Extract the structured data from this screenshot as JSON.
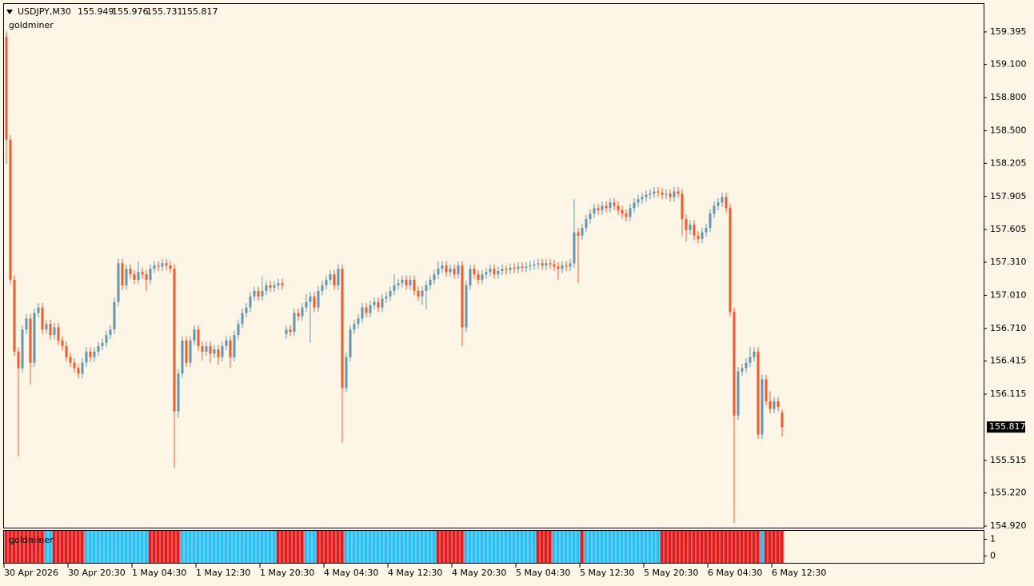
{
  "chart_data": [
    {
      "type": "candlestick",
      "title": "USDJPY,M30",
      "indicator": "goldminer",
      "up_color": "#5f97b3",
      "down_color": "#f25a28",
      "xlim": [
        -0.6,
        244.4
      ],
      "ylim": [
        154.906,
        159.648
      ],
      "yticks": [
        159.395,
        {
          "value": 159.1,
          "label": "159.100"
        },
        {
          "value": 158.8,
          "label": "158.800"
        },
        {
          "value": 158.5,
          "label": "158.500"
        },
        158.205,
        157.905,
        157.605,
        {
          "value": 157.31,
          "label": "157.310"
        },
        {
          "value": 157.01,
          "label": "157.010"
        },
        {
          "value": 156.71,
          "label": "156.710"
        },
        156.415,
        156.115,
        155.515,
        {
          "value": 155.22,
          "label": "155.220"
        },
        {
          "value": 154.92,
          "label": "154.920"
        }
      ],
      "current_price": 155.817,
      "xticks": [
        {
          "value": 0,
          "label": "30 Apr 2026"
        },
        {
          "value": 16,
          "label": "30 Apr 20:30"
        },
        {
          "value": 32,
          "label": "1 May 04:30"
        },
        {
          "value": 48,
          "label": "1 May 12:30"
        },
        {
          "value": 64,
          "label": "1 May 20:30"
        },
        {
          "value": 80,
          "label": "4 May 04:30"
        },
        {
          "value": 96,
          "label": "4 May 12:30"
        },
        {
          "value": 112,
          "label": "4 May 20:30"
        },
        {
          "value": 128,
          "label": "5 May 04:30"
        },
        {
          "value": 144,
          "label": "5 May 12:30"
        },
        {
          "value": 160,
          "label": "5 May 20:30"
        },
        {
          "value": 176,
          "label": "6 May 04:30"
        },
        {
          "value": 192,
          "label": "6 May 12:30"
        }
      ],
      "open": [
        159.35,
        158.42,
        157.15,
        156.5,
        156.35,
        156.7,
        156.8,
        156.4,
        156.85,
        156.9,
        156.7,
        156.75,
        156.65,
        156.72,
        156.6,
        156.55,
        156.45,
        156.4,
        156.35,
        156.3,
        156.4,
        156.5,
        156.45,
        156.5,
        156.55,
        156.58,
        156.65,
        156.7,
        156.95,
        157.3,
        157.1,
        157.25,
        157.2,
        157.15,
        157.22,
        157.2,
        157.15,
        157.25,
        157.28,
        157.27,
        157.3,
        157.28,
        157.25,
        155.96,
        156.3,
        156.6,
        156.4,
        156.6,
        156.7,
        156.55,
        156.5,
        156.55,
        156.48,
        156.52,
        156.45,
        156.55,
        156.6,
        156.45,
        156.65,
        156.75,
        156.85,
        156.9,
        157.0,
        157.05,
        157.0,
        157.05,
        157.1,
        157.08,
        157.1,
        157.12,
        156.66,
        156.7,
        156.68,
        156.85,
        156.82,
        156.9,
        156.95,
        157.0,
        156.9,
        157.05,
        157.1,
        157.15,
        157.2,
        157.1,
        157.25,
        156.17,
        156.45,
        156.7,
        156.75,
        156.8,
        156.9,
        156.85,
        156.92,
        156.95,
        156.9,
        156.98,
        157.0,
        157.05,
        157.1,
        157.12,
        157.15,
        157.1,
        157.15,
        157.05,
        157.0,
        157.05,
        157.1,
        157.15,
        157.2,
        157.25,
        157.28,
        157.22,
        157.25,
        157.2,
        157.28,
        156.72,
        157.1,
        157.25,
        157.2,
        157.15,
        157.2,
        157.22,
        157.25,
        157.2,
        157.23,
        157.25,
        157.24,
        157.26,
        157.25,
        157.27,
        157.26,
        157.27,
        157.28,
        157.29,
        157.3,
        157.28,
        157.3,
        157.29,
        157.27,
        157.25,
        157.28,
        157.27,
        157.3,
        157.58,
        157.55,
        157.62,
        157.7,
        157.75,
        157.8,
        157.78,
        157.82,
        157.8,
        157.85,
        157.82,
        157.78,
        157.75,
        157.72,
        157.8,
        157.85,
        157.88,
        157.9,
        157.92,
        157.93,
        157.95,
        157.94,
        157.92,
        157.93,
        157.9,
        157.95,
        157.93,
        157.7,
        157.6,
        157.65,
        157.55,
        157.52,
        157.58,
        157.62,
        157.75,
        157.82,
        157.85,
        157.9,
        157.8,
        156.86,
        155.92,
        156.32,
        156.35,
        156.4,
        156.45,
        156.5,
        155.75,
        156.25,
        156.05,
        155.98,
        156.05,
        155.949
      ],
      "high": [
        159.4,
        158.46,
        157.19,
        156.54,
        156.74,
        156.84,
        156.84,
        156.89,
        156.94,
        156.94,
        156.79,
        156.79,
        156.76,
        156.76,
        156.64,
        156.59,
        156.49,
        156.44,
        156.39,
        156.44,
        156.54,
        156.54,
        156.54,
        156.59,
        156.62,
        156.69,
        156.74,
        156.99,
        157.34,
        157.34,
        157.29,
        157.29,
        157.24,
        157.32,
        157.26,
        157.24,
        157.29,
        157.32,
        157.32,
        157.34,
        157.34,
        157.32,
        157.29,
        156.34,
        156.64,
        156.64,
        156.64,
        156.74,
        156.74,
        156.59,
        156.59,
        156.59,
        156.56,
        156.56,
        156.59,
        156.64,
        156.64,
        156.69,
        156.79,
        156.89,
        156.94,
        157.04,
        157.09,
        157.09,
        157.18,
        157.14,
        157.14,
        157.14,
        157.16,
        157.16,
        156.74,
        156.74,
        156.89,
        156.89,
        156.94,
        157.02,
        157.04,
        157.04,
        157.09,
        157.14,
        157.19,
        157.24,
        157.24,
        157.29,
        157.29,
        156.49,
        156.74,
        156.79,
        156.84,
        156.94,
        156.94,
        156.96,
        156.99,
        156.99,
        157.02,
        157.04,
        157.09,
        157.2,
        157.16,
        157.19,
        157.19,
        157.19,
        157.19,
        157.09,
        157.09,
        157.14,
        157.19,
        157.24,
        157.32,
        157.32,
        157.32,
        157.29,
        157.29,
        157.32,
        157.32,
        157.14,
        157.29,
        157.29,
        157.24,
        157.24,
        157.26,
        157.29,
        157.29,
        157.27,
        157.29,
        157.28,
        157.3,
        157.3,
        157.31,
        157.31,
        157.31,
        157.32,
        157.33,
        157.34,
        157.34,
        157.34,
        157.34,
        157.33,
        157.31,
        157.32,
        157.32,
        157.34,
        157.88,
        157.62,
        157.66,
        157.74,
        157.79,
        157.84,
        157.84,
        157.86,
        157.86,
        157.89,
        157.89,
        157.86,
        157.82,
        157.79,
        157.84,
        157.89,
        157.92,
        157.94,
        157.96,
        157.97,
        157.99,
        157.99,
        157.98,
        157.97,
        157.97,
        157.99,
        157.99,
        157.97,
        157.74,
        157.69,
        157.69,
        157.59,
        157.62,
        157.66,
        157.79,
        157.86,
        157.89,
        157.94,
        157.94,
        157.84,
        156.9,
        156.36,
        156.39,
        156.44,
        156.54,
        156.54,
        156.54,
        156.29,
        156.29,
        156.14,
        156.09,
        156.09,
        155.976
      ],
      "low": [
        158.2,
        157.11,
        156.46,
        155.55,
        156.31,
        156.66,
        156.2,
        156.36,
        156.81,
        156.66,
        156.66,
        156.61,
        156.61,
        156.56,
        156.51,
        156.41,
        156.36,
        156.31,
        156.26,
        156.26,
        156.36,
        156.41,
        156.41,
        156.46,
        156.51,
        156.54,
        156.61,
        156.66,
        156.91,
        157.06,
        157.06,
        157.16,
        157.11,
        157.11,
        157.16,
        157.05,
        157.11,
        157.21,
        157.23,
        157.23,
        157.24,
        157.21,
        155.45,
        155.9,
        156.26,
        156.36,
        156.36,
        156.56,
        156.51,
        156.42,
        156.46,
        156.4,
        156.44,
        156.38,
        156.41,
        156.51,
        156.35,
        156.41,
        156.61,
        156.71,
        156.81,
        156.86,
        156.96,
        156.96,
        156.96,
        157.01,
        157.04,
        157.04,
        157.06,
        157.06,
        156.62,
        156.64,
        156.64,
        156.78,
        156.78,
        156.86,
        156.58,
        156.86,
        156.86,
        157.01,
        157.06,
        157.11,
        157.06,
        157.06,
        155.68,
        156.13,
        156.41,
        156.66,
        156.71,
        156.76,
        156.81,
        156.81,
        156.88,
        156.86,
        156.86,
        156.94,
        156.96,
        157.01,
        157.06,
        157.08,
        157.06,
        157.06,
        157.01,
        156.96,
        156.92,
        156.88,
        157.06,
        157.11,
        157.16,
        157.21,
        157.18,
        157.18,
        157.16,
        157.16,
        156.55,
        156.68,
        157.06,
        157.16,
        157.11,
        157.11,
        157.16,
        157.18,
        157.16,
        157.16,
        157.19,
        157.2,
        157.2,
        157.21,
        157.21,
        157.22,
        157.22,
        157.23,
        157.24,
        157.25,
        157.24,
        157.24,
        157.25,
        157.23,
        157.15,
        157.21,
        157.23,
        157.23,
        157.26,
        157.12,
        157.51,
        157.58,
        157.66,
        157.71,
        157.74,
        157.74,
        157.76,
        157.76,
        157.78,
        157.74,
        157.71,
        157.68,
        157.68,
        157.76,
        157.81,
        157.84,
        157.86,
        157.88,
        157.89,
        157.9,
        157.88,
        157.88,
        157.86,
        157.86,
        157.89,
        157.55,
        157.5,
        157.56,
        157.51,
        157.48,
        157.48,
        157.54,
        157.58,
        157.71,
        157.78,
        157.81,
        157.76,
        156.82,
        154.95,
        155.88,
        156.28,
        156.31,
        156.36,
        156.41,
        155.71,
        155.71,
        156.01,
        155.94,
        155.94,
        155.96,
        155.731
      ],
      "close": [
        158.42,
        157.15,
        156.5,
        156.35,
        156.7,
        156.8,
        156.4,
        156.85,
        156.9,
        156.7,
        156.75,
        156.65,
        156.72,
        156.6,
        156.55,
        156.45,
        156.4,
        156.35,
        156.3,
        156.4,
        156.5,
        156.45,
        156.5,
        156.55,
        156.58,
        156.65,
        156.7,
        156.95,
        157.3,
        157.1,
        157.25,
        157.2,
        157.15,
        157.22,
        157.2,
        157.15,
        157.25,
        157.28,
        157.27,
        157.3,
        157.28,
        157.25,
        155.96,
        156.3,
        156.6,
        156.4,
        156.6,
        156.7,
        156.55,
        156.5,
        156.55,
        156.48,
        156.52,
        156.45,
        156.55,
        156.6,
        156.45,
        156.65,
        156.75,
        156.85,
        156.9,
        157.0,
        157.05,
        157.0,
        157.05,
        157.1,
        157.08,
        157.1,
        157.12,
        157.1,
        156.7,
        156.68,
        156.85,
        156.82,
        156.9,
        156.95,
        157.0,
        156.9,
        157.05,
        157.1,
        157.15,
        157.2,
        157.1,
        157.25,
        156.17,
        156.45,
        156.7,
        156.75,
        156.8,
        156.9,
        156.85,
        156.92,
        156.95,
        156.9,
        156.98,
        157.0,
        157.05,
        157.1,
        157.12,
        157.15,
        157.1,
        157.15,
        157.05,
        157.0,
        157.05,
        157.1,
        157.15,
        157.2,
        157.25,
        157.28,
        157.22,
        157.25,
        157.2,
        157.28,
        156.72,
        157.1,
        157.25,
        157.2,
        157.15,
        157.2,
        157.22,
        157.25,
        157.2,
        157.23,
        157.25,
        157.24,
        157.26,
        157.25,
        157.27,
        157.26,
        157.27,
        157.28,
        157.29,
        157.3,
        157.28,
        157.3,
        157.29,
        157.27,
        157.25,
        157.28,
        157.27,
        157.3,
        157.58,
        157.55,
        157.62,
        157.7,
        157.75,
        157.8,
        157.78,
        157.82,
        157.8,
        157.85,
        157.82,
        157.78,
        157.75,
        157.72,
        157.8,
        157.85,
        157.88,
        157.9,
        157.92,
        157.93,
        157.95,
        157.94,
        157.92,
        157.93,
        157.9,
        157.95,
        157.93,
        157.7,
        157.6,
        157.65,
        157.55,
        157.52,
        157.58,
        157.62,
        157.75,
        157.82,
        157.85,
        157.9,
        157.8,
        156.86,
        155.92,
        156.32,
        156.35,
        156.4,
        156.45,
        156.5,
        155.75,
        156.25,
        156.05,
        155.98,
        156.05,
        156.0,
        155.817
      ]
    },
    {
      "type": "signal_bars",
      "title": "goldminer",
      "ylim": [
        -0.41,
        1.5
      ],
      "yticks": [
        0,
        1
      ],
      "segments": [
        {
          "start": 0,
          "end": 10,
          "color": "#e31d1d"
        },
        {
          "start": 10,
          "end": 12,
          "color": "#29bff0"
        },
        {
          "start": 12,
          "end": 20,
          "color": "#e31d1d"
        },
        {
          "start": 20,
          "end": 36,
          "color": "#29bff0"
        },
        {
          "start": 36,
          "end": 44,
          "color": "#e31d1d"
        },
        {
          "start": 44,
          "end": 68,
          "color": "#29bff0"
        },
        {
          "start": 68,
          "end": 75,
          "color": "#e31d1d"
        },
        {
          "start": 75,
          "end": 78,
          "color": "#29bff0"
        },
        {
          "start": 78,
          "end": 85,
          "color": "#e31d1d"
        },
        {
          "start": 85,
          "end": 108,
          "color": "#29bff0"
        },
        {
          "start": 108,
          "end": 115,
          "color": "#e31d1d"
        },
        {
          "start": 115,
          "end": 133,
          "color": "#29bff0"
        },
        {
          "start": 133,
          "end": 137,
          "color": "#e31d1d"
        },
        {
          "start": 137,
          "end": 144,
          "color": "#29bff0"
        },
        {
          "start": 144,
          "end": 145,
          "color": "#e31d1d"
        },
        {
          "start": 145,
          "end": 164,
          "color": "#29bff0"
        },
        {
          "start": 164,
          "end": 189,
          "color": "#e31d1d"
        },
        {
          "start": 189,
          "end": 190,
          "color": "#29bff0"
        },
        {
          "start": 190,
          "end": 195,
          "color": "#e31d1d"
        }
      ]
    }
  ]
}
